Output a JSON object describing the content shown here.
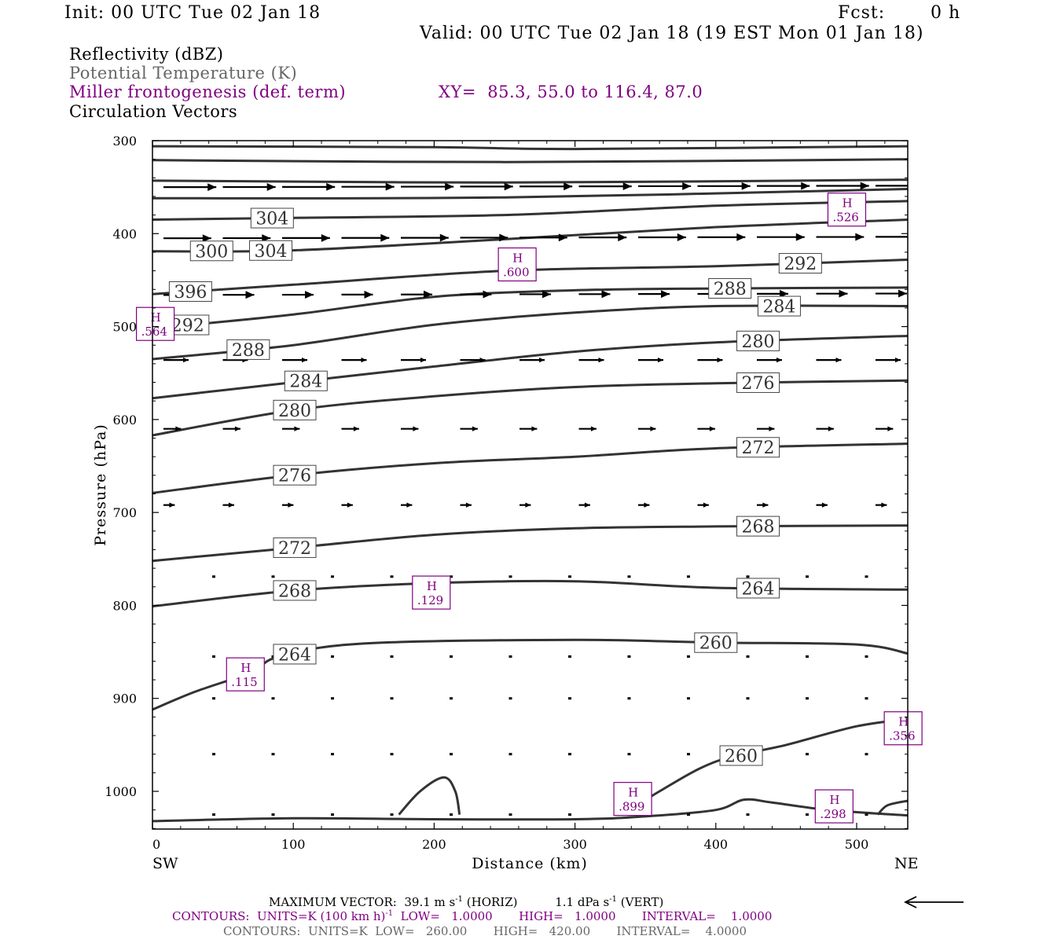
{
  "header": {
    "init": "Init: 00 UTC Tue 02 Jan 18",
    "fcst_label": "Fcst:",
    "fcst_value": "0 h",
    "valid": "Valid: 00 UTC Tue 02 Jan 18 (19 EST Mon 01 Jan 18)"
  },
  "fields": {
    "reflectivity": "Reflectivity (dBZ)",
    "potential_temperature": "Potential Temperature (K)",
    "frontogenesis": "Miller frontogenesis (def. term)",
    "xy": "XY=  85.3, 55.0 to 116.4, 87.0",
    "circulation": "Circulation Vectors"
  },
  "colors": {
    "theta": "#333333",
    "frontogenesis": "#800080",
    "vectors": "#000000"
  },
  "chart_data": {
    "type": "line",
    "ylabel": "Pressure (hPa)",
    "xlabel": "Distance (km)",
    "x_left_label": "SW",
    "x_right_label": "NE",
    "xlim": [
      0,
      537
    ],
    "ylim": [
      1040,
      300
    ],
    "y_scale": "linear, inverted",
    "x_ticks": [
      "0",
      "100",
      "200",
      "300",
      "400",
      "500"
    ],
    "y_ticks": [
      "300",
      "400",
      "500",
      "600",
      "700",
      "800",
      "900",
      "1000"
    ],
    "theta_contours": [
      {
        "label": "",
        "points": [
          [
            0,
            306
          ],
          [
            200,
            307
          ],
          [
            300,
            309
          ],
          [
            537,
            306
          ]
        ]
      },
      {
        "label": "",
        "points": [
          [
            0,
            321
          ],
          [
            250,
            323
          ],
          [
            537,
            320
          ]
        ]
      },
      {
        "label": "",
        "points": [
          [
            0,
            343
          ],
          [
            250,
            345
          ],
          [
            537,
            342
          ]
        ]
      },
      {
        "label": "",
        "points": [
          [
            0,
            362
          ],
          [
            250,
            361
          ],
          [
            537,
            352
          ]
        ]
      },
      {
        "label": "304",
        "points": [
          [
            0,
            385
          ],
          [
            100,
            383
          ],
          [
            250,
            380
          ],
          [
            400,
            370
          ],
          [
            537,
            365
          ]
        ]
      },
      {
        "label": "300",
        "points": [
          [
            0,
            419
          ],
          [
            100,
            418
          ],
          [
            250,
            406
          ],
          [
            400,
            393
          ],
          [
            537,
            385
          ]
        ]
      },
      {
        "label": "292",
        "points": [
          [
            0,
            465
          ],
          [
            100,
            455
          ],
          [
            250,
            440
          ],
          [
            400,
            435
          ],
          [
            537,
            428
          ]
        ]
      },
      {
        "label": "288",
        "points": [
          [
            0,
            502
          ],
          [
            100,
            487
          ],
          [
            200,
            468
          ],
          [
            300,
            461
          ],
          [
            400,
            459
          ],
          [
            537,
            458
          ]
        ]
      },
      {
        "label": "284",
        "points": [
          [
            0,
            535
          ],
          [
            100,
            520
          ],
          [
            200,
            498
          ],
          [
            300,
            485
          ],
          [
            400,
            478
          ],
          [
            537,
            478
          ]
        ]
      },
      {
        "label": "280",
        "points": [
          [
            0,
            577
          ],
          [
            100,
            560
          ],
          [
            200,
            543
          ],
          [
            300,
            527
          ],
          [
            400,
            517
          ],
          [
            537,
            510
          ]
        ]
      },
      {
        "label": "276",
        "points": [
          [
            0,
            617
          ],
          [
            100,
            590
          ],
          [
            200,
            575
          ],
          [
            300,
            565
          ],
          [
            400,
            561
          ],
          [
            537,
            558
          ]
        ]
      },
      {
        "label": "272",
        "points": [
          [
            0,
            679
          ],
          [
            100,
            660
          ],
          [
            200,
            647
          ],
          [
            300,
            640
          ],
          [
            400,
            631
          ],
          [
            537,
            626
          ]
        ]
      },
      {
        "label": "268",
        "points": [
          [
            0,
            752
          ],
          [
            100,
            738
          ],
          [
            200,
            724
          ],
          [
            300,
            717
          ],
          [
            400,
            715
          ],
          [
            537,
            714
          ]
        ]
      },
      {
        "label": "264",
        "points": [
          [
            0,
            801
          ],
          [
            100,
            784
          ],
          [
            200,
            776
          ],
          [
            300,
            774
          ],
          [
            400,
            781
          ],
          [
            537,
            783
          ]
        ]
      },
      {
        "label": "260",
        "points": [
          [
            0,
            912
          ],
          [
            30,
            893
          ],
          [
            70,
            872
          ],
          [
            90,
            855
          ],
          [
            150,
            841
          ],
          [
            300,
            837
          ],
          [
            400,
            840
          ],
          [
            500,
            842
          ],
          [
            537,
            852
          ]
        ]
      },
      {
        "label": "",
        "points": [
          [
            335,
            1025
          ],
          [
            360,
            1000
          ],
          [
            400,
            968
          ],
          [
            450,
            950
          ],
          [
            500,
            930
          ],
          [
            537,
            922
          ]
        ]
      },
      {
        "label": "",
        "points": [
          [
            0,
            1032
          ],
          [
            100,
            1029
          ],
          [
            200,
            1030
          ],
          [
            300,
            1030
          ],
          [
            350,
            1027
          ],
          [
            400,
            1020
          ],
          [
            420,
            1009
          ],
          [
            440,
            1012
          ],
          [
            480,
            1020
          ],
          [
            537,
            1026
          ]
        ]
      },
      {
        "label": "",
        "points": [
          [
            175,
            1025
          ],
          [
            190,
            1000
          ],
          [
            207,
            985
          ],
          [
            215,
            1000
          ],
          [
            218,
            1025
          ]
        ]
      },
      {
        "label": "",
        "points": [
          [
            515,
            1025
          ],
          [
            522,
            1015
          ],
          [
            537,
            1010
          ]
        ]
      }
    ],
    "frontogenesis_highs": [
      {
        "label": "H",
        "value": ".526",
        "x": 493,
        "p": 375
      },
      {
        "label": "H",
        "value": ".600",
        "x": 259,
        "p": 434
      },
      {
        "label": "H",
        "value": ".564",
        "x": 2,
        "p": 498
      },
      {
        "label": "H",
        "value": ".129",
        "x": 198,
        "p": 787
      },
      {
        "label": "H",
        "value": ".115",
        "x": 66,
        "p": 875
      },
      {
        "label": "H",
        "value": ".356",
        "x": 533,
        "p": 933
      },
      {
        "label": "H",
        "value": ".899",
        "x": 341,
        "p": 1009
      },
      {
        "label": "H",
        "value": ".298",
        "x": 484,
        "p": 1017
      }
    ],
    "vector_rows": [
      {
        "p": 350,
        "length": 42
      },
      {
        "p": 405,
        "length": 38
      },
      {
        "p": 466,
        "length": 25
      },
      {
        "p": 536,
        "length": 20
      },
      {
        "p": 610,
        "length": 14
      },
      {
        "p": 692,
        "length": 9
      },
      {
        "p": 769,
        "length": 2
      },
      {
        "p": 855,
        "length": 2
      },
      {
        "p": 900,
        "length": 2
      },
      {
        "p": 960,
        "length": 2
      },
      {
        "p": 1025,
        "length": 1
      }
    ]
  },
  "footer": {
    "max_vector_label": "MAXIMUM VECTOR:",
    "max_vector_horiz": "39.1 m s",
    "horiz_unit": "(HORIZ)",
    "max_vector_vert": "1.1 dPa s",
    "vert_unit": "(VERT)",
    "exponent": "-1",
    "contours_purple_a": "CONTOURS:  UNITS=K (100 km h)",
    "contours_purple_b": "  LOW=   1.0000       HIGH=   1.0000       INTERVAL=    1.0000",
    "contours_black": "CONTOURS:  UNITS=K  LOW=   260.00       HIGH=   420.00       INTERVAL=    4.0000"
  }
}
